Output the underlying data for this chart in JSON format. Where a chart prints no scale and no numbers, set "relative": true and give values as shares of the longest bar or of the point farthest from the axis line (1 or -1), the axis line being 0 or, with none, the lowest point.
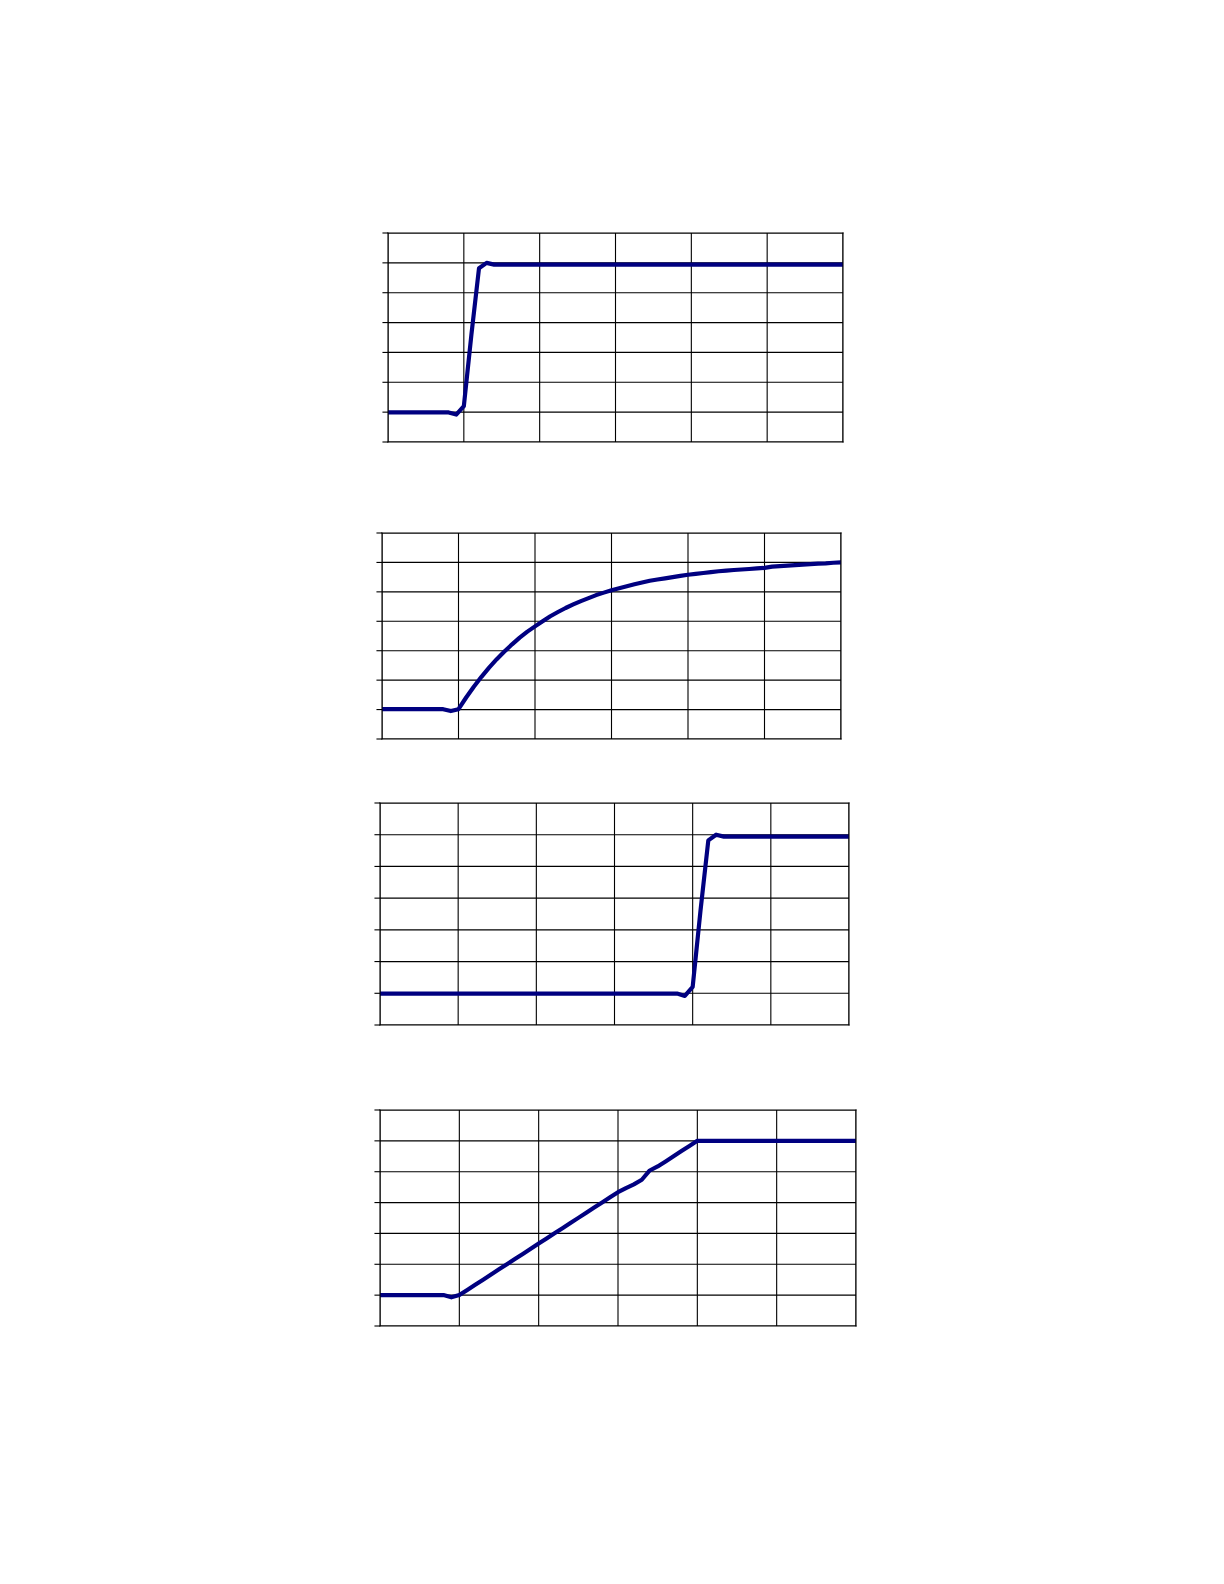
{
  "chart_data": [
    {
      "type": "line",
      "relative": true,
      "grid": true,
      "categories": [
        null,
        null,
        null,
        null,
        null,
        null,
        null,
        null,
        null,
        null,
        null,
        null,
        null,
        null,
        null,
        null,
        null,
        null,
        null,
        null,
        null,
        null,
        null,
        null,
        null,
        null,
        null,
        null,
        null,
        null,
        null,
        null,
        null,
        null,
        null,
        null,
        null,
        null,
        null,
        null,
        null,
        null,
        null,
        null,
        null,
        null,
        null,
        null,
        null,
        null,
        null,
        null,
        null,
        null,
        null,
        null,
        null,
        null,
        null,
        null,
        null
      ],
      "series": [
        {
          "color": "#000080",
          "values": [
            0.165,
            0.165,
            0.165,
            0.165,
            0.165,
            0.165,
            0.165,
            0.165,
            0.165,
            0.153,
            0.2,
            0.6,
            0.97,
            1.0,
            0.99,
            0.99,
            0.99,
            0.99,
            0.99,
            0.99,
            0.99,
            0.99,
            0.99,
            0.99,
            0.99,
            0.99,
            0.99,
            0.99,
            0.99,
            0.99,
            0.99,
            0.99,
            0.99,
            0.99,
            0.99,
            0.99,
            0.99,
            0.99,
            0.99,
            0.99,
            0.99,
            0.99,
            0.99,
            0.99,
            0.99,
            0.99,
            0.99,
            0.99,
            0.99,
            0.99,
            0.99,
            0.99,
            0.99,
            0.99,
            0.99,
            0.99,
            0.99,
            0.99,
            0.99,
            0.99,
            0.99
          ]
        }
      ]
    },
    {
      "type": "line",
      "relative": true,
      "grid": true,
      "categories": [
        null,
        null,
        null,
        null,
        null,
        null,
        null,
        null,
        null,
        null,
        null,
        null,
        null,
        null,
        null,
        null,
        null,
        null,
        null,
        null,
        null,
        null,
        null,
        null,
        null,
        null,
        null,
        null,
        null,
        null,
        null,
        null,
        null,
        null,
        null,
        null,
        null,
        null,
        null,
        null,
        null,
        null,
        null,
        null,
        null,
        null,
        null,
        null,
        null,
        null,
        null,
        null,
        null,
        null,
        null,
        null,
        null,
        null,
        null,
        null,
        null
      ],
      "series": [
        {
          "color": "#000080",
          "values": [
            0.169,
            0.169,
            0.169,
            0.169,
            0.169,
            0.169,
            0.169,
            0.169,
            0.169,
            0.158,
            0.169,
            0.235,
            0.296,
            0.352,
            0.404,
            0.452,
            0.495,
            0.536,
            0.574,
            0.608,
            0.638,
            0.667,
            0.695,
            0.719,
            0.742,
            0.762,
            0.781,
            0.798,
            0.815,
            0.829,
            0.843,
            0.854,
            0.865,
            0.876,
            0.886,
            0.896,
            0.903,
            0.91,
            0.917,
            0.924,
            0.93,
            0.935,
            0.94,
            0.945,
            0.95,
            0.954,
            0.957,
            0.96,
            0.963,
            0.966,
            0.969,
            0.976,
            0.979,
            0.982,
            0.985,
            0.988,
            0.99,
            0.993,
            0.995,
            0.998,
            1.0
          ]
        }
      ]
    },
    {
      "type": "line",
      "relative": true,
      "grid": true,
      "categories": [
        null,
        null,
        null,
        null,
        null,
        null,
        null,
        null,
        null,
        null,
        null,
        null,
        null,
        null,
        null,
        null,
        null,
        null,
        null,
        null,
        null,
        null,
        null,
        null,
        null,
        null,
        null,
        null,
        null,
        null,
        null,
        null,
        null,
        null,
        null,
        null,
        null,
        null,
        null,
        null,
        null,
        null,
        null,
        null,
        null,
        null,
        null,
        null,
        null,
        null,
        null,
        null,
        null,
        null,
        null,
        null,
        null,
        null,
        null,
        null,
        null
      ],
      "series": [
        {
          "color": "#000080",
          "values": [
            0.165,
            0.165,
            0.165,
            0.165,
            0.165,
            0.165,
            0.165,
            0.165,
            0.165,
            0.165,
            0.165,
            0.165,
            0.165,
            0.165,
            0.165,
            0.165,
            0.165,
            0.165,
            0.165,
            0.165,
            0.165,
            0.165,
            0.165,
            0.165,
            0.165,
            0.165,
            0.165,
            0.165,
            0.165,
            0.165,
            0.165,
            0.165,
            0.165,
            0.165,
            0.165,
            0.165,
            0.165,
            0.165,
            0.165,
            0.153,
            0.2,
            0.6,
            0.97,
            1.0,
            0.99,
            0.99,
            0.99,
            0.99,
            0.99,
            0.99,
            0.99,
            0.99,
            0.99,
            0.99,
            0.99,
            0.99,
            0.99,
            0.99,
            0.99,
            0.99,
            0.99
          ]
        }
      ]
    },
    {
      "type": "line",
      "relative": true,
      "grid": true,
      "categories": [
        null,
        null,
        null,
        null,
        null,
        null,
        null,
        null,
        null,
        null,
        null,
        null,
        null,
        null,
        null,
        null,
        null,
        null,
        null,
        null,
        null,
        null,
        null,
        null,
        null,
        null,
        null,
        null,
        null,
        null,
        null,
        null,
        null,
        null,
        null,
        null,
        null,
        null,
        null,
        null,
        null,
        null,
        null,
        null,
        null,
        null,
        null,
        null,
        null,
        null,
        null,
        null,
        null,
        null,
        null,
        null,
        null,
        null,
        null,
        null,
        null
      ],
      "series": [
        {
          "color": "#000080",
          "values": [
            0.167,
            0.167,
            0.167,
            0.167,
            0.167,
            0.167,
            0.167,
            0.167,
            0.167,
            0.155,
            0.167,
            0.195,
            0.223,
            0.25,
            0.278,
            0.306,
            0.334,
            0.362,
            0.389,
            0.417,
            0.445,
            0.473,
            0.501,
            0.528,
            0.556,
            0.584,
            0.612,
            0.64,
            0.667,
            0.695,
            0.723,
            0.745,
            0.765,
            0.79,
            0.84,
            0.862,
            0.889,
            0.917,
            0.945,
            0.972,
            1.0,
            1,
            1,
            1,
            1,
            1,
            1,
            1,
            1,
            1,
            1,
            1,
            1,
            1,
            1,
            1,
            1,
            1,
            1,
            1,
            1
          ]
        }
      ]
    }
  ]
}
